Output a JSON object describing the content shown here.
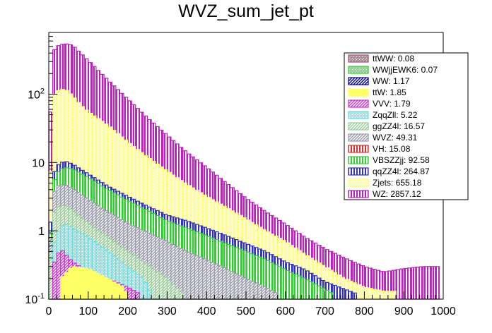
{
  "chart_data": {
    "type": "bar",
    "stacked": true,
    "title": "WVZ_sum_jet_pt",
    "xlabel": "",
    "ylabel": "",
    "xlim": [
      0,
      1000
    ],
    "ylim": [
      0.1,
      800
    ],
    "log_y": true,
    "bin_width": 10,
    "x_ticks": [
      "0",
      "100",
      "200",
      "300",
      "400",
      "500",
      "600",
      "700",
      "800",
      "900",
      "1000"
    ],
    "y_ticks": [
      "10^{-1}",
      "1",
      "10",
      "10^{2}"
    ],
    "legend_position": "top-right",
    "legend": [
      {
        "label": "ttWW: 0.08",
        "color": "#a0506a",
        "pattern": "dots"
      },
      {
        "label": "WWjjEWK6: 0.07",
        "color": "#33cc33",
        "pattern": "dots"
      },
      {
        "label": "WW: 1.17",
        "color": "#000099",
        "pattern": "diag"
      },
      {
        "label": "ttW: 1.85",
        "color": "#ffff66",
        "pattern": "solid"
      },
      {
        "label": "VVV: 1.79",
        "color": "#cc33cc",
        "pattern": "diag"
      },
      {
        "label": "ZqqZll: 5.22",
        "color": "#66dddd",
        "pattern": "dots"
      },
      {
        "label": "ggZZ4l: 16.57",
        "color": "#99cc99",
        "pattern": "diag"
      },
      {
        "label": "WVZ: 49.31",
        "color": "#9999aa",
        "pattern": "diag"
      },
      {
        "label": "VH: 15.08",
        "color": "#dd3333",
        "pattern": "vert"
      },
      {
        "label": "VBSZZjj: 92.58",
        "color": "#33cc33",
        "pattern": "vert"
      },
      {
        "label": "qqZZ4l: 264.87",
        "color": "#3333bb",
        "pattern": "vert"
      },
      {
        "label": "Zjets: 655.18",
        "color": "#ffff66",
        "pattern": "dots"
      },
      {
        "label": "WZ: 2857.12",
        "color": "#bb22bb",
        "pattern": "vert"
      }
    ],
    "stack_levels": [
      {
        "name": "WZ total",
        "color": "#bb22bb",
        "pattern": "vert",
        "points": [
          [
            0,
            7.5
          ],
          [
            10,
            400
          ],
          [
            20,
            500
          ],
          [
            40,
            550
          ],
          [
            60,
            520
          ],
          [
            80,
            400
          ],
          [
            100,
            310
          ],
          [
            150,
            160
          ],
          [
            200,
            85
          ],
          [
            250,
            45
          ],
          [
            300,
            25
          ],
          [
            350,
            14
          ],
          [
            400,
            8.5
          ],
          [
            450,
            5
          ],
          [
            500,
            3
          ],
          [
            550,
            1.9
          ],
          [
            600,
            1.25
          ],
          [
            650,
            0.8
          ],
          [
            700,
            0.55
          ],
          [
            750,
            0.4
          ],
          [
            800,
            0.3
          ],
          [
            850,
            0.25
          ],
          [
            900,
            0.28
          ],
          [
            950,
            0.3
          ],
          [
            990,
            0.3
          ]
        ]
      },
      {
        "name": "Zjets",
        "color": "#ffff66",
        "pattern": "dots",
        "points": [
          [
            0,
            0.6
          ],
          [
            10,
            90
          ],
          [
            20,
            110
          ],
          [
            40,
            120
          ],
          [
            60,
            95
          ],
          [
            80,
            70
          ],
          [
            100,
            55
          ],
          [
            150,
            35
          ],
          [
            200,
            20
          ],
          [
            250,
            12
          ],
          [
            300,
            7.5
          ],
          [
            350,
            4.8
          ],
          [
            400,
            3.2
          ],
          [
            450,
            2.2
          ],
          [
            500,
            1.5
          ],
          [
            550,
            1.0
          ],
          [
            600,
            0.7
          ],
          [
            650,
            0.45
          ],
          [
            700,
            0.3
          ],
          [
            750,
            0.2
          ],
          [
            800,
            0.15
          ],
          [
            850,
            0.13
          ],
          [
            880,
            0.13
          ]
        ]
      },
      {
        "name": "qqZZ4l",
        "color": "#3333bb",
        "pattern": "vert",
        "points": [
          [
            0,
            0.3
          ],
          [
            10,
            6
          ],
          [
            20,
            9
          ],
          [
            40,
            10.5
          ],
          [
            60,
            9.5
          ],
          [
            80,
            8
          ],
          [
            100,
            6.8
          ],
          [
            150,
            4.5
          ],
          [
            200,
            3.2
          ],
          [
            250,
            2.3
          ],
          [
            300,
            1.7
          ],
          [
            350,
            1.4
          ],
          [
            400,
            1.1
          ],
          [
            450,
            0.85
          ],
          [
            500,
            0.65
          ],
          [
            550,
            0.5
          ],
          [
            600,
            0.35
          ],
          [
            650,
            0.27
          ],
          [
            700,
            0.18
          ],
          [
            750,
            0.14
          ],
          [
            780,
            0.12
          ]
        ]
      },
      {
        "name": "VBSZZjj",
        "color": "#33cc33",
        "pattern": "vert",
        "points": [
          [
            0,
            0.2
          ],
          [
            10,
            4.5
          ],
          [
            20,
            7
          ],
          [
            40,
            8.5
          ],
          [
            60,
            8
          ],
          [
            80,
            7
          ],
          [
            100,
            6
          ],
          [
            150,
            4
          ],
          [
            200,
            2.8
          ],
          [
            250,
            2
          ],
          [
            300,
            1.4
          ],
          [
            350,
            1.1
          ],
          [
            400,
            0.85
          ],
          [
            450,
            0.65
          ],
          [
            500,
            0.5
          ],
          [
            550,
            0.38
          ],
          [
            600,
            0.27
          ],
          [
            650,
            0.2
          ],
          [
            700,
            0.14
          ],
          [
            720,
            0.12
          ]
        ]
      },
      {
        "name": "WVZ",
        "color": "#9999aa",
        "pattern": "diag",
        "points": [
          [
            0,
            0.18
          ],
          [
            10,
            3.2
          ],
          [
            20,
            4.5
          ],
          [
            40,
            4.8
          ],
          [
            60,
            4.2
          ],
          [
            80,
            3.5
          ],
          [
            100,
            2.9
          ],
          [
            150,
            1.9
          ],
          [
            200,
            1.3
          ],
          [
            250,
            0.95
          ],
          [
            300,
            0.7
          ],
          [
            350,
            0.5
          ],
          [
            400,
            0.38
          ],
          [
            450,
            0.28
          ],
          [
            500,
            0.2
          ],
          [
            550,
            0.15
          ],
          [
            580,
            0.12
          ]
        ]
      },
      {
        "name": "ggZZ4l",
        "color": "#99cc99",
        "pattern": "diag",
        "points": [
          [
            0,
            0.15
          ],
          [
            10,
            1.6
          ],
          [
            20,
            2.2
          ],
          [
            40,
            2.4
          ],
          [
            60,
            2.0
          ],
          [
            80,
            1.6
          ],
          [
            100,
            1.3
          ],
          [
            150,
            0.8
          ],
          [
            200,
            0.5
          ],
          [
            250,
            0.32
          ],
          [
            300,
            0.2
          ],
          [
            340,
            0.12
          ]
        ]
      },
      {
        "name": "ZqqZll",
        "color": "#66dddd",
        "pattern": "dots",
        "points": [
          [
            10,
            0.5
          ],
          [
            20,
            0.9
          ],
          [
            40,
            1.3
          ],
          [
            60,
            1.1
          ],
          [
            80,
            0.95
          ],
          [
            100,
            0.8
          ],
          [
            150,
            0.5
          ],
          [
            200,
            0.3
          ],
          [
            240,
            0.2
          ],
          [
            260,
            0.12
          ]
        ]
      },
      {
        "name": "VVV",
        "color": "#cc33cc",
        "pattern": "diag",
        "points": [
          [
            10,
            0.3
          ],
          [
            30,
            0.55
          ],
          [
            60,
            0.35
          ],
          [
            100,
            0.25
          ],
          [
            150,
            0.2
          ],
          [
            200,
            0.15
          ],
          [
            230,
            0.12
          ]
        ]
      },
      {
        "name": "ttW",
        "color": "#ffff66",
        "pattern": "solid",
        "points": [
          [
            30,
            0.2
          ],
          [
            60,
            0.3
          ],
          [
            100,
            0.28
          ],
          [
            150,
            0.2
          ],
          [
            190,
            0.15
          ],
          [
            200,
            0.11
          ]
        ]
      }
    ]
  }
}
